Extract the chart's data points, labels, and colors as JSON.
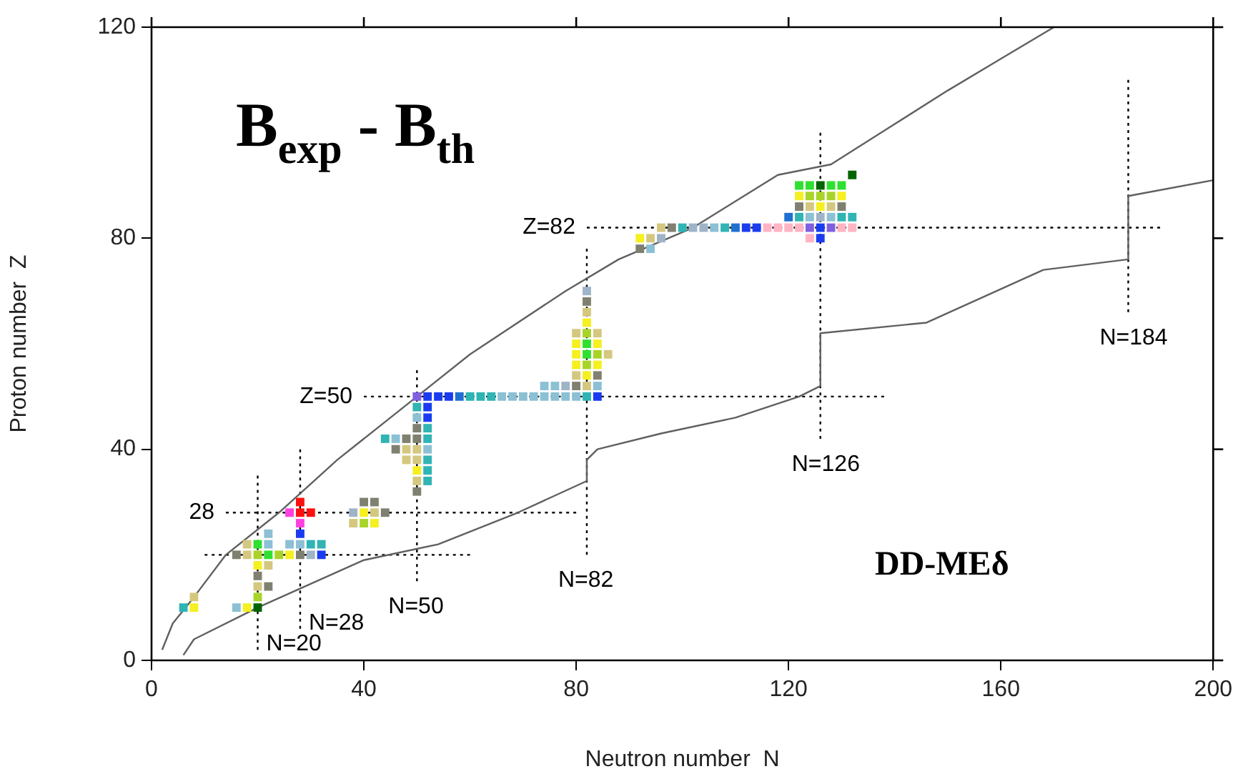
{
  "chart_data": {
    "type": "scatter",
    "title": "B$_{exp}$ - B$_{th}$",
    "xlabel": "Neutron number  N",
    "ylabel": "Proton number  Z",
    "annotations": [
      "DD-MEδ"
    ],
    "xlim": [
      0,
      200
    ],
    "xticks": [
      0,
      40,
      80,
      120,
      160,
      200
    ],
    "ylim": [
      0,
      120
    ],
    "yticks": [
      0,
      40,
      80,
      120
    ],
    "grid": false,
    "legend": false,
    "series": [
      {
        "type": "line",
        "color": "#606060",
        "marker": "none",
        "line_style": "solid",
        "x": [
          2,
          4,
          8,
          14,
          24,
          35,
          50,
          60,
          78,
          88,
          102,
          118,
          128,
          139,
          150,
          160,
          170
        ],
        "values": [
          2,
          7,
          12,
          20,
          28,
          38,
          50,
          58,
          70,
          76,
          82,
          92,
          94,
          101,
          108,
          114,
          120
        ]
      },
      {
        "type": "line",
        "color": "#606060",
        "marker": "none",
        "line_style": "solid",
        "x": [
          6,
          8,
          20,
          40,
          54,
          69,
          82,
          82,
          84,
          96,
          110,
          122,
          126,
          126,
          146,
          168,
          184,
          184,
          200
        ],
        "values": [
          1,
          4,
          10,
          19,
          22,
          28,
          34,
          38,
          40,
          43,
          46,
          50,
          52,
          62,
          64,
          74,
          76,
          88,
          91
        ]
      },
      {
        "type": "line",
        "color": "#000000",
        "marker": "none",
        "line_style": "dotted",
        "x": [
          10,
          60
        ],
        "values": [
          20,
          20
        ]
      },
      {
        "type": "line",
        "name": "28",
        "color": "#000000",
        "marker": "none",
        "line_style": "dotted",
        "x": [
          14,
          80
        ],
        "values": [
          28,
          28
        ]
      },
      {
        "type": "line",
        "name": "Z=50",
        "color": "#000000",
        "marker": "none",
        "line_style": "dotted",
        "x": [
          40,
          138
        ],
        "values": [
          50,
          50
        ]
      },
      {
        "type": "line",
        "name": "Z=82",
        "color": "#000000",
        "marker": "none",
        "line_style": "dotted",
        "x": [
          82,
          190
        ],
        "values": [
          82,
          82
        ]
      },
      {
        "type": "line",
        "name": "N=20",
        "color": "#000000",
        "marker": "none",
        "line_style": "dotted",
        "x": [
          20,
          20
        ],
        "values": [
          2,
          35
        ]
      },
      {
        "type": "line",
        "name": "N=28",
        "color": "#000000",
        "marker": "none",
        "line_style": "dotted",
        "x": [
          28,
          28
        ],
        "values": [
          6,
          40
        ]
      },
      {
        "type": "line",
        "name": "N=50",
        "color": "#000000",
        "marker": "none",
        "line_style": "dotted",
        "x": [
          50,
          50
        ],
        "values": [
          15,
          55
        ]
      },
      {
        "type": "line",
        "name": "N=82",
        "color": "#000000",
        "marker": "none",
        "line_style": "dotted",
        "x": [
          82,
          82
        ],
        "values": [
          20,
          78
        ]
      },
      {
        "type": "line",
        "name": "N=126",
        "color": "#000000",
        "marker": "none",
        "line_style": "dotted",
        "x": [
          126,
          126
        ],
        "values": [
          42,
          100
        ]
      },
      {
        "type": "line",
        "name": "N=184",
        "color": "#000000",
        "marker": "none",
        "line_style": "dotted",
        "x": [
          184,
          184
        ],
        "values": [
          66,
          110
        ]
      },
      {
        "color": "#30b4b4",
        "marker": "square",
        "x": [
          6,
          30,
          32,
          52,
          52,
          52,
          44,
          52,
          52,
          50,
          60,
          62,
          64,
          82,
          100,
          108,
          122,
          130,
          132
        ],
        "values": [
          10,
          22,
          22,
          34,
          36,
          38,
          42,
          42,
          44,
          48,
          50,
          50,
          50,
          50,
          82,
          82,
          84,
          84,
          84
        ]
      },
      {
        "color": "#f5f020",
        "marker": "square",
        "x": [
          8,
          18,
          20,
          26,
          42,
          40,
          50,
          82,
          80,
          84,
          80,
          80,
          84,
          82,
          92,
          126,
          122,
          130
        ],
        "values": [
          10,
          10,
          18,
          20,
          26,
          28,
          36,
          54,
          56,
          56,
          58,
          60,
          60,
          64,
          80,
          86,
          88,
          88
        ]
      },
      {
        "color": "#8cc0d4",
        "marker": "square",
        "x": [
          16,
          22,
          26,
          28,
          22,
          52,
          46,
          50,
          66,
          68,
          70,
          72,
          74,
          76,
          78,
          80,
          74,
          76,
          84,
          94,
          106,
          124,
          128
        ],
        "values": [
          10,
          22,
          22,
          22,
          24,
          40,
          42,
          46,
          50,
          50,
          50,
          50,
          50,
          50,
          50,
          50,
          52,
          52,
          52,
          78,
          82,
          84,
          84
        ]
      },
      {
        "color": "#006400",
        "marker": "square",
        "x": [
          20,
          126,
          132
        ],
        "values": [
          10,
          90,
          92
        ]
      },
      {
        "color": "#d4c880",
        "marker": "square",
        "x": [
          8,
          20,
          22,
          18,
          18,
          38,
          42,
          50,
          48,
          50,
          48,
          50,
          82,
          80,
          86,
          80,
          84,
          82,
          94,
          96,
          124,
          128
        ],
        "values": [
          12,
          14,
          18,
          20,
          22,
          26,
          28,
          34,
          38,
          38,
          40,
          40,
          52,
          54,
          58,
          62,
          62,
          66,
          80,
          82,
          86,
          86
        ]
      },
      {
        "color": "#a8d428",
        "marker": "square",
        "x": [
          20,
          20,
          24,
          40,
          82,
          84,
          82,
          124,
          126,
          128
        ],
        "values": [
          12,
          20,
          20,
          26,
          56,
          58,
          62,
          88,
          88,
          88
        ]
      },
      {
        "color": "#808070",
        "marker": "square",
        "x": [
          22,
          20,
          16,
          28,
          44,
          40,
          42,
          50,
          46,
          48,
          50,
          50,
          80,
          84,
          82,
          92,
          98,
          122,
          130
        ],
        "values": [
          14,
          16,
          20,
          20,
          28,
          30,
          30,
          32,
          40,
          42,
          42,
          44,
          52,
          54,
          68,
          78,
          82,
          86,
          86
        ]
      },
      {
        "color": "#30e030",
        "marker": "square",
        "x": [
          22,
          20,
          82,
          82,
          122,
          124,
          128,
          130
        ],
        "values": [
          20,
          22,
          58,
          60,
          90,
          90,
          90,
          90
        ]
      },
      {
        "color": "#a0b4c8",
        "marker": "square",
        "x": [
          30,
          38,
          78,
          82,
          96,
          102,
          104,
          126
        ],
        "values": [
          20,
          28,
          52,
          70,
          80,
          82,
          82,
          84
        ]
      },
      {
        "color": "#1a3cf0",
        "marker": "square",
        "x": [
          32,
          28,
          52,
          52,
          52,
          54,
          56,
          84,
          126,
          112,
          114,
          126
        ],
        "values": [
          20,
          24,
          46,
          48,
          50,
          50,
          50,
          50,
          80,
          82,
          82,
          82
        ]
      },
      {
        "color": "#ff40e0",
        "marker": "square",
        "x": [
          28,
          26
        ],
        "values": [
          26,
          28
        ]
      },
      {
        "color": "#ff1010",
        "marker": "square",
        "x": [
          28,
          30,
          28
        ],
        "values": [
          28,
          28,
          30
        ]
      },
      {
        "color": "#2070d0",
        "marker": "square",
        "x": [
          58,
          110,
          120
        ],
        "values": [
          50,
          82,
          84
        ]
      },
      {
        "color": "#8060e0",
        "marker": "square",
        "x": [
          50,
          124,
          128
        ],
        "values": [
          50,
          82,
          82
        ]
      },
      {
        "color": "#ffb4c4",
        "marker": "square",
        "x": [
          124,
          116,
          118,
          120,
          122,
          130,
          132
        ],
        "values": [
          80,
          82,
          82,
          82,
          82,
          82,
          82
        ]
      }
    ]
  }
}
